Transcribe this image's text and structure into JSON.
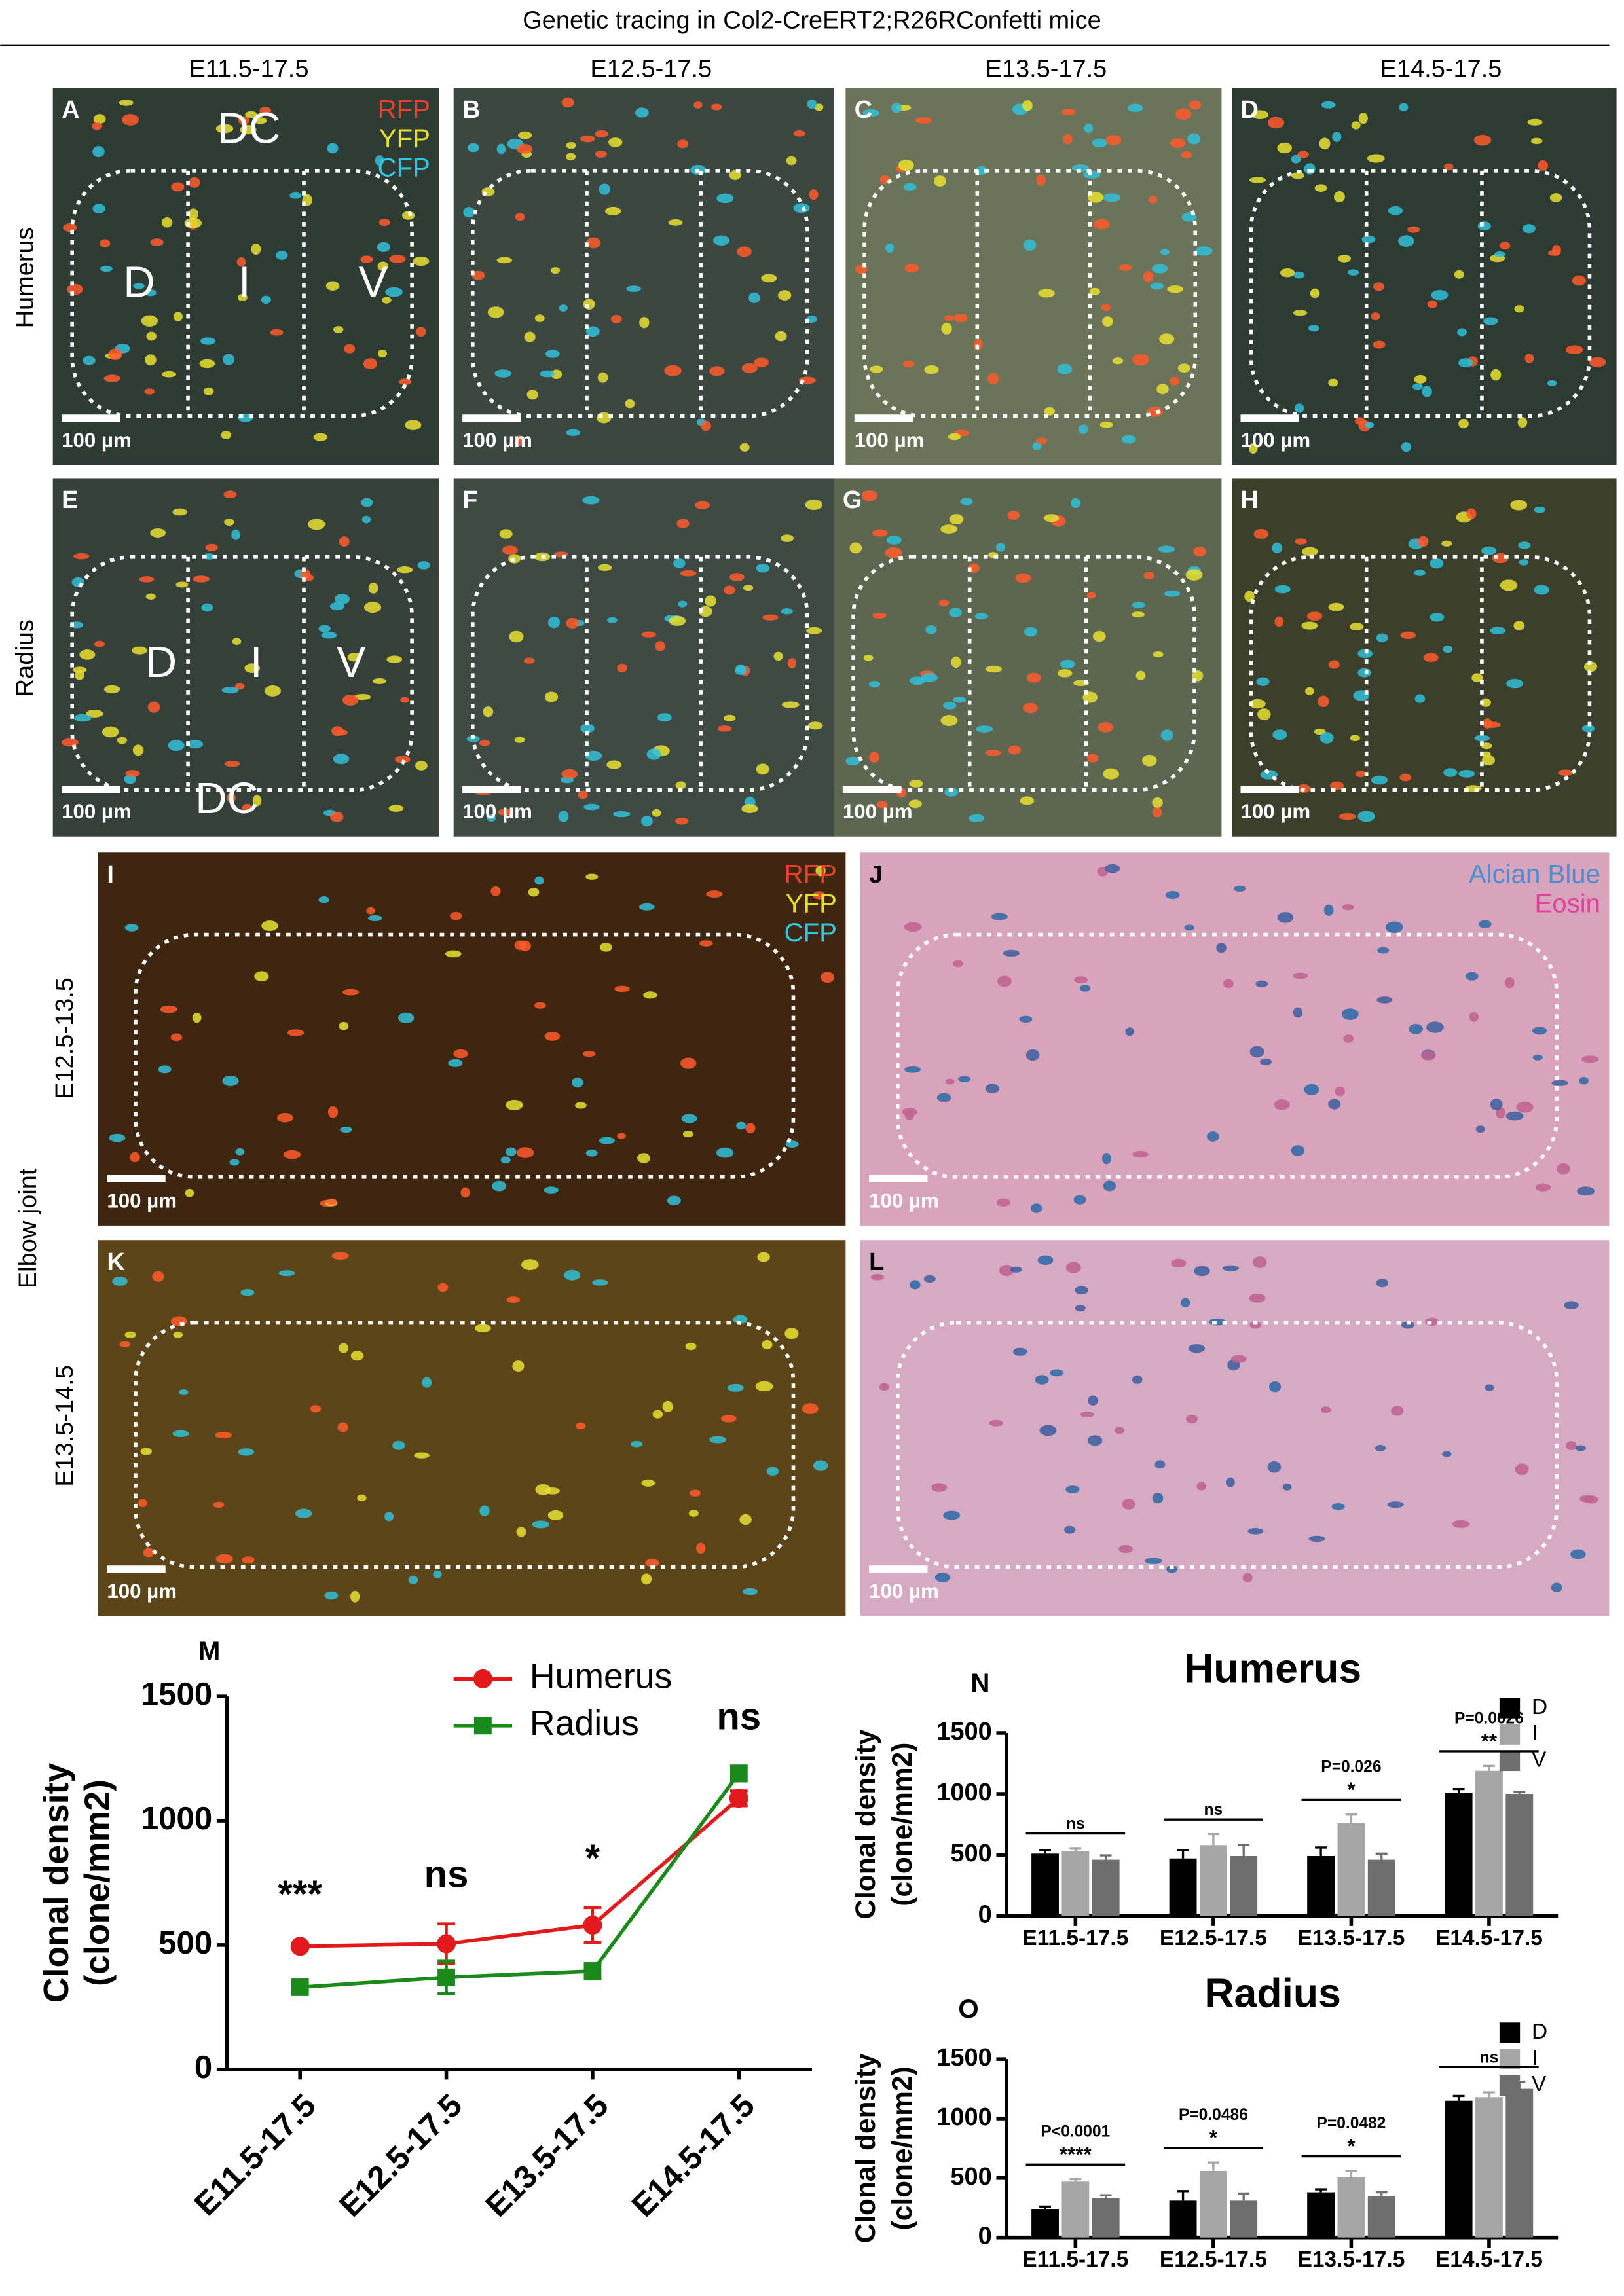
{
  "figure": {
    "title": "Genetic tracing in Col2-CreERT2;R26RConfetti mice",
    "columns": [
      "E11.5-17.5",
      "E12.5-17.5",
      "E13.5-17.5",
      "E14.5-17.5"
    ],
    "rows": [
      "Humerus",
      "Radius"
    ],
    "elbow_title": "Elbow joint",
    "elbow_rows": [
      "E12.5-13.5",
      "E13.5-14.5"
    ],
    "panels": [
      {
        "label": "A",
        "scale_bar": "100 µm",
        "regions": [
          "DC",
          "D",
          "I",
          "V"
        ],
        "legend": [
          {
            "text": "RFP",
            "color": "#e8402a"
          },
          {
            "text": "YFP",
            "color": "#e6e030"
          },
          {
            "text": "CFP",
            "color": "#30c8e0"
          }
        ]
      },
      {
        "label": "B",
        "scale_bar": "100 µm"
      },
      {
        "label": "C",
        "scale_bar": "100 µm"
      },
      {
        "label": "D",
        "scale_bar": "100 µm"
      },
      {
        "label": "E",
        "scale_bar": "100 µm",
        "regions": [
          "D",
          "I",
          "V",
          "DC"
        ]
      },
      {
        "label": "F",
        "scale_bar": "100 µm"
      },
      {
        "label": "G",
        "scale_bar": "100 µm"
      },
      {
        "label": "H",
        "scale_bar": "100 µm"
      },
      {
        "label": "I",
        "scale_bar": "100 µm",
        "legend": [
          {
            "text": "RFP",
            "color": "#e8402a"
          },
          {
            "text": "YFP",
            "color": "#e6e030"
          },
          {
            "text": "CFP",
            "color": "#30c8e0"
          }
        ]
      },
      {
        "label": "J",
        "scale_bar": "100 µm",
        "legend": [
          {
            "text": "Alcian Blue",
            "color": "#4a90d0"
          },
          {
            "text": "Eosin",
            "color": "#e040a0"
          }
        ]
      },
      {
        "label": "K",
        "scale_bar": "100 µm"
      },
      {
        "label": "L",
        "scale_bar": "100 µm"
      }
    ]
  },
  "chart_data": [
    {
      "type": "line",
      "panel": "M",
      "y_label": [
        "Clonal density",
        "(clone/mm2)"
      ],
      "categories": [
        "E11.5-17.5",
        "E12.5-17.5",
        "E13.5-17.5",
        "E14.5-17.5"
      ],
      "series": [
        {
          "name": "Humerus",
          "color": "#e31a1c",
          "marker": "circle",
          "values": [
            495,
            505,
            580,
            1090
          ],
          "errors": [
            10,
            80,
            70,
            30
          ]
        },
        {
          "name": "Radius",
          "color": "#1a8a1a",
          "marker": "square",
          "values": [
            330,
            370,
            395,
            1190
          ],
          "errors": [
            15,
            65,
            30,
            30
          ]
        }
      ],
      "annotations": [
        "***",
        "ns",
        "*",
        "ns"
      ],
      "ylim": [
        0,
        1500
      ],
      "yticks": [
        0,
        500,
        1000,
        1500
      ]
    },
    {
      "type": "bar",
      "panel": "N",
      "title": "Humerus",
      "y_label": [
        "Clonal density",
        "(clone/mm2)"
      ],
      "categories": [
        "E11.5-17.5",
        "E12.5-17.5",
        "E13.5-17.5",
        "E14.5-17.5"
      ],
      "series": [
        {
          "name": "D",
          "color": "#000000",
          "values": [
            510,
            470,
            490,
            1010
          ],
          "errors": [
            30,
            70,
            70,
            30
          ]
        },
        {
          "name": "I",
          "color": "#a6a6a6",
          "values": [
            530,
            580,
            760,
            1190
          ],
          "errors": [
            25,
            90,
            70,
            40
          ]
        },
        {
          "name": "V",
          "color": "#6e6e6e",
          "values": [
            460,
            490,
            460,
            1000
          ],
          "errors": [
            35,
            90,
            50,
            15
          ]
        }
      ],
      "annotations": [
        {
          "text": "ns"
        },
        {
          "text": "ns"
        },
        {
          "p": "P=0.026",
          "text": "*"
        },
        {
          "p": "P=0.0026",
          "text": "**"
        }
      ],
      "ylim": [
        0,
        1500
      ],
      "yticks": [
        0,
        500,
        1000,
        1500
      ]
    },
    {
      "type": "bar",
      "panel": "O",
      "title": "Radius",
      "y_label": [
        "Clonal density",
        "(clone/mm2)"
      ],
      "categories": [
        "E11.5-17.5",
        "E12.5-17.5",
        "E13.5-17.5",
        "E14.5-17.5"
      ],
      "series": [
        {
          "name": "D",
          "color": "#000000",
          "values": [
            240,
            310,
            380,
            1150
          ],
          "errors": [
            20,
            80,
            25,
            40
          ]
        },
        {
          "name": "I",
          "color": "#a6a6a6",
          "values": [
            470,
            560,
            510,
            1180
          ],
          "errors": [
            20,
            70,
            50,
            40
          ]
        },
        {
          "name": "V",
          "color": "#6e6e6e",
          "values": [
            330,
            310,
            350,
            1250
          ],
          "errors": [
            25,
            60,
            30,
            60
          ]
        }
      ],
      "annotations": [
        {
          "p": "P<0.0001",
          "text": "****"
        },
        {
          "p": "P=0.0486",
          "text": "*"
        },
        {
          "p": "P=0.0482",
          "text": "*"
        },
        {
          "text": "ns"
        }
      ],
      "ylim": [
        0,
        1500
      ],
      "yticks": [
        0,
        500,
        1000,
        1500
      ]
    }
  ]
}
